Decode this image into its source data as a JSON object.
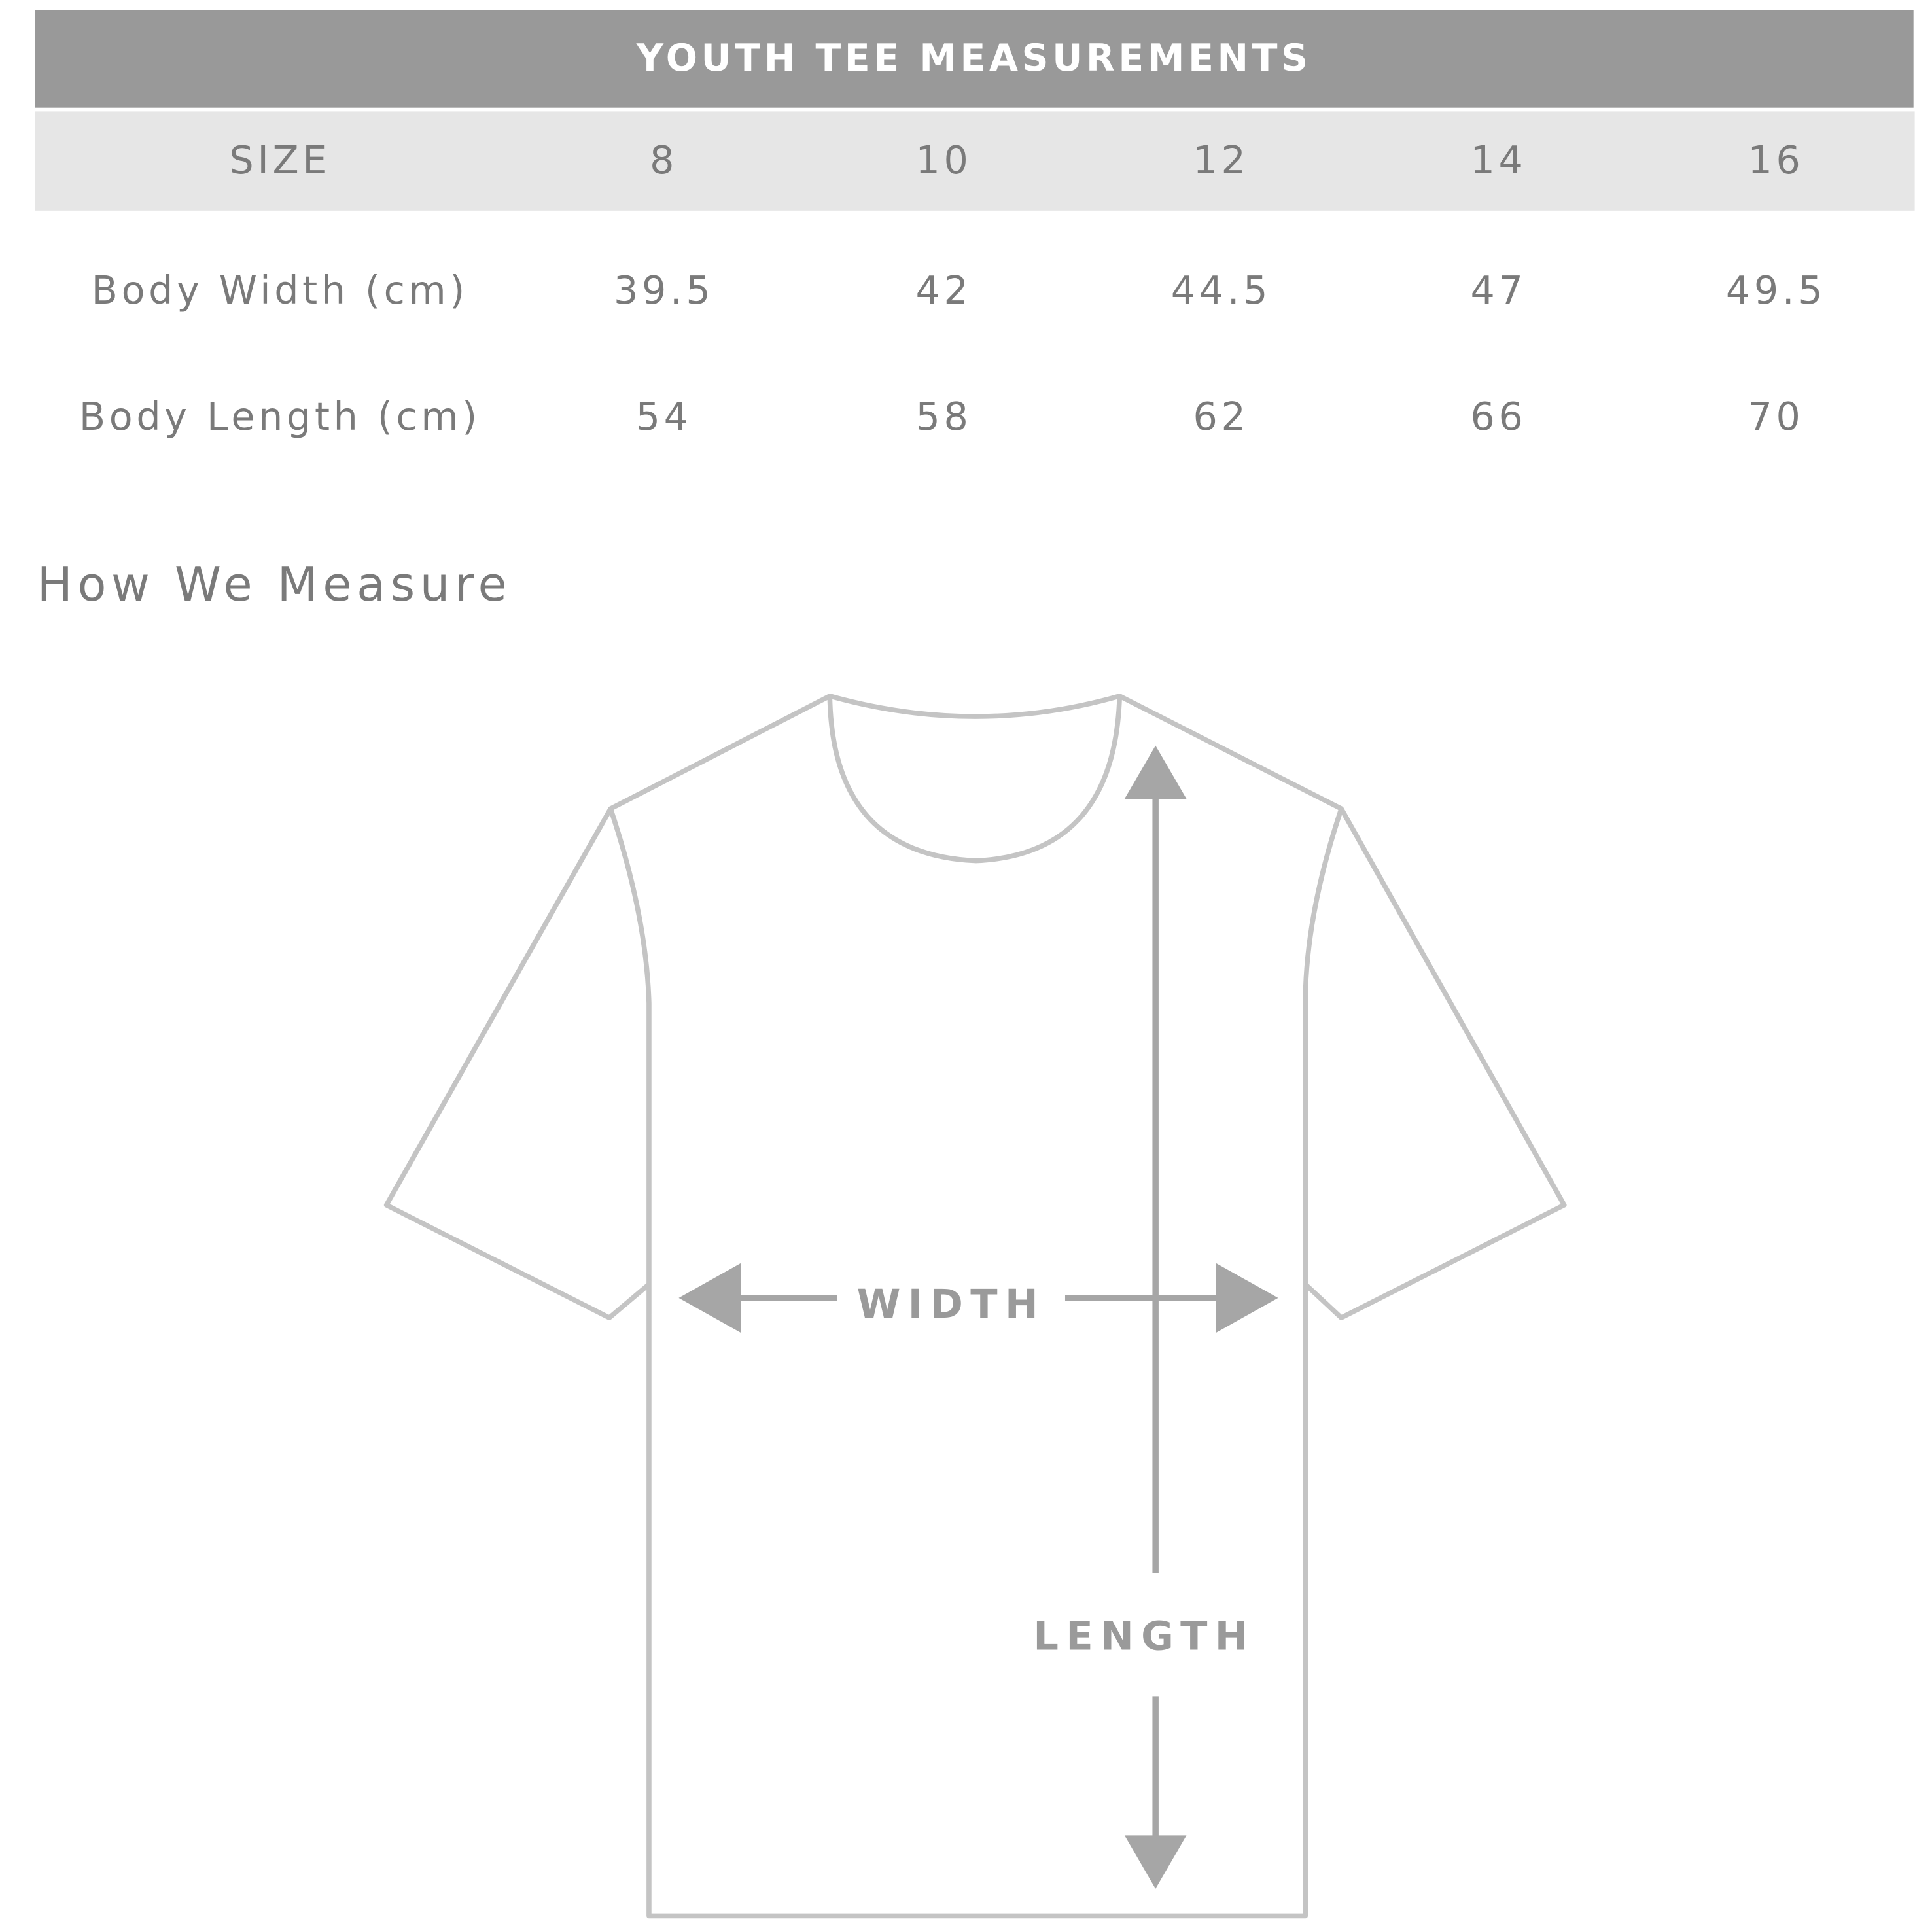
{
  "table": {
    "title": "YOUTH TEE MEASUREMENTS",
    "header": [
      "SIZE",
      "8",
      "10",
      "12",
      "14",
      "16"
    ],
    "rows": [
      [
        "Body Width (cm)",
        "39.5",
        "42",
        "44.5",
        "47",
        "49.5"
      ],
      [
        "Body Length (cm)",
        "54",
        "58",
        "62",
        "66",
        "70"
      ]
    ]
  },
  "diagram": {
    "heading": "How We Measure",
    "width_label": "WIDTH",
    "length_label": "LENGTH",
    "colors": {
      "outline": "#c4c4c4",
      "arrow": "#a6a6a6",
      "header_bg": "#999999",
      "size_row_bg": "#e6e6e6"
    }
  }
}
